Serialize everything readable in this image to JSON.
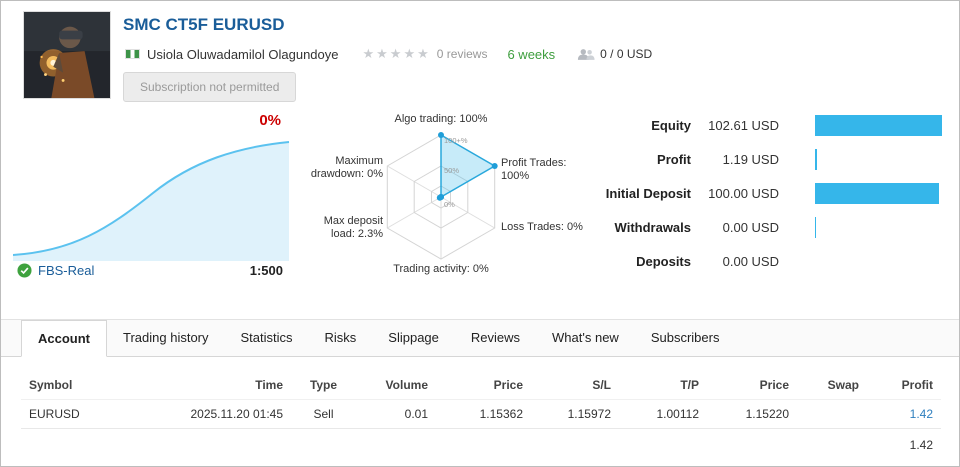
{
  "colors": {
    "accent": "#35b6ea",
    "title_blue": "#1a5d99",
    "positive_green": "#3e9e3e",
    "growth_red": "#cc0000",
    "profit_blue": "#2e7fbe"
  },
  "header": {
    "title": "SMC CT5F EURUSD",
    "author": "Usiola Oluwadamilol Olagundoye",
    "stars": "★★★★★",
    "reviews": "0 reviews",
    "age": "6 weeks",
    "subscribers": "0 / 0 USD",
    "subscription_button": "Subscription not permitted"
  },
  "growth": {
    "percent": "0%",
    "account": "FBS-Real",
    "leverage": "1:500"
  },
  "radar": {
    "labels": [
      "Algo trading: 100%",
      "Profit Trades: 100%",
      "Loss Trades: 0%",
      "Trading activity: 0%",
      "Max deposit load: 2.3%",
      "Maximum drawdown: 0%"
    ],
    "values": [
      100,
      100,
      0,
      0,
      2.3,
      0
    ],
    "scale": [
      "100+%",
      "50%",
      "0%"
    ]
  },
  "stats": {
    "rows": [
      {
        "label": "Equity",
        "value": "102.61 USD",
        "bar": 100
      },
      {
        "label": "Profit",
        "value": "1.19 USD",
        "bar": 1.5
      },
      {
        "label": "Initial Deposit",
        "value": "100.00 USD",
        "bar": 97.4
      },
      {
        "label": "Withdrawals",
        "value": "0.00 USD",
        "bar": 0.6
      },
      {
        "label": "Deposits",
        "value": "0.00 USD",
        "bar": 0
      }
    ]
  },
  "tabs": [
    "Account",
    "Trading history",
    "Statistics",
    "Risks",
    "Slippage",
    "Reviews",
    "What's new",
    "Subscribers"
  ],
  "active_tab": "Account",
  "table": {
    "columns": [
      "Symbol",
      "Time",
      "Type",
      "Volume",
      "Price",
      "S/L",
      "T/P",
      "Price",
      "Swap",
      "Profit"
    ],
    "rows": [
      {
        "symbol": "EURUSD",
        "time": "2025.11.20 01:45",
        "type": "Sell",
        "volume": "0.01",
        "price": "1.15362",
        "sl": "1.15972",
        "tp": "1.00112",
        "price2": "1.15220",
        "swap": "",
        "profit": "1.42"
      }
    ],
    "total": "1.42"
  },
  "chart_data": {
    "type": "radar",
    "categories": [
      "Algo trading",
      "Profit Trades",
      "Loss Trades",
      "Trading activity",
      "Max deposit load",
      "Maximum drawdown"
    ],
    "values": [
      100,
      100,
      0,
      0,
      2.3,
      0
    ],
    "scale_ticks": [
      "0%",
      "50%",
      "100+%"
    ]
  }
}
